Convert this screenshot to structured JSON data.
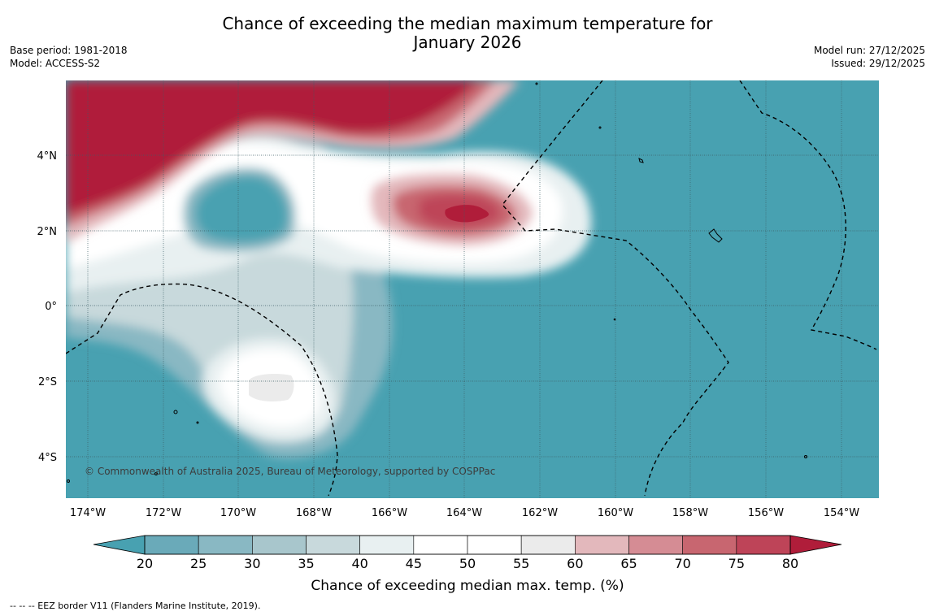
{
  "title": {
    "line1": "Chance of exceeding the median maximum temperature for",
    "line2": "January 2026"
  },
  "meta_left": {
    "base_period": "Base period: 1981-2018",
    "model": "Model: ACCESS-S2"
  },
  "meta_right": {
    "model_run": "Model run: 27/12/2025",
    "issued": "Issued: 29/12/2025"
  },
  "map": {
    "lat_labels": [
      "4°N",
      "2°N",
      "0°",
      "2°S",
      "4°S"
    ],
    "lon_labels": [
      "174°W",
      "172°W",
      "170°W",
      "168°W",
      "166°W",
      "164°W",
      "162°W",
      "160°W",
      "158°W",
      "156°W",
      "154°W"
    ],
    "copyright": "© Commonwealth of Australia 2025, Bureau of Meteorology, supported by COSPPac"
  },
  "colorbar": {
    "ticks": [
      "20",
      "25",
      "30",
      "35",
      "40",
      "45",
      "50",
      "55",
      "60",
      "65",
      "70",
      "75",
      "80"
    ],
    "colors": [
      "#6aaab9",
      "#89b8c3",
      "#a8c6cc",
      "#c8d9dc",
      "#e8f0f1",
      "#ffffff",
      "#ffffff",
      "#ebebeb",
      "#e3b8bc",
      "#d58c94",
      "#c86670",
      "#be4458"
    ],
    "under_color": "#48a1b1",
    "over_color": "#b01d3a",
    "label": "Chance of exceeding median max. temp. (%)"
  },
  "footer": "-- -- -- EEZ border V11 (Flanders Marine Institute, 2019)."
}
